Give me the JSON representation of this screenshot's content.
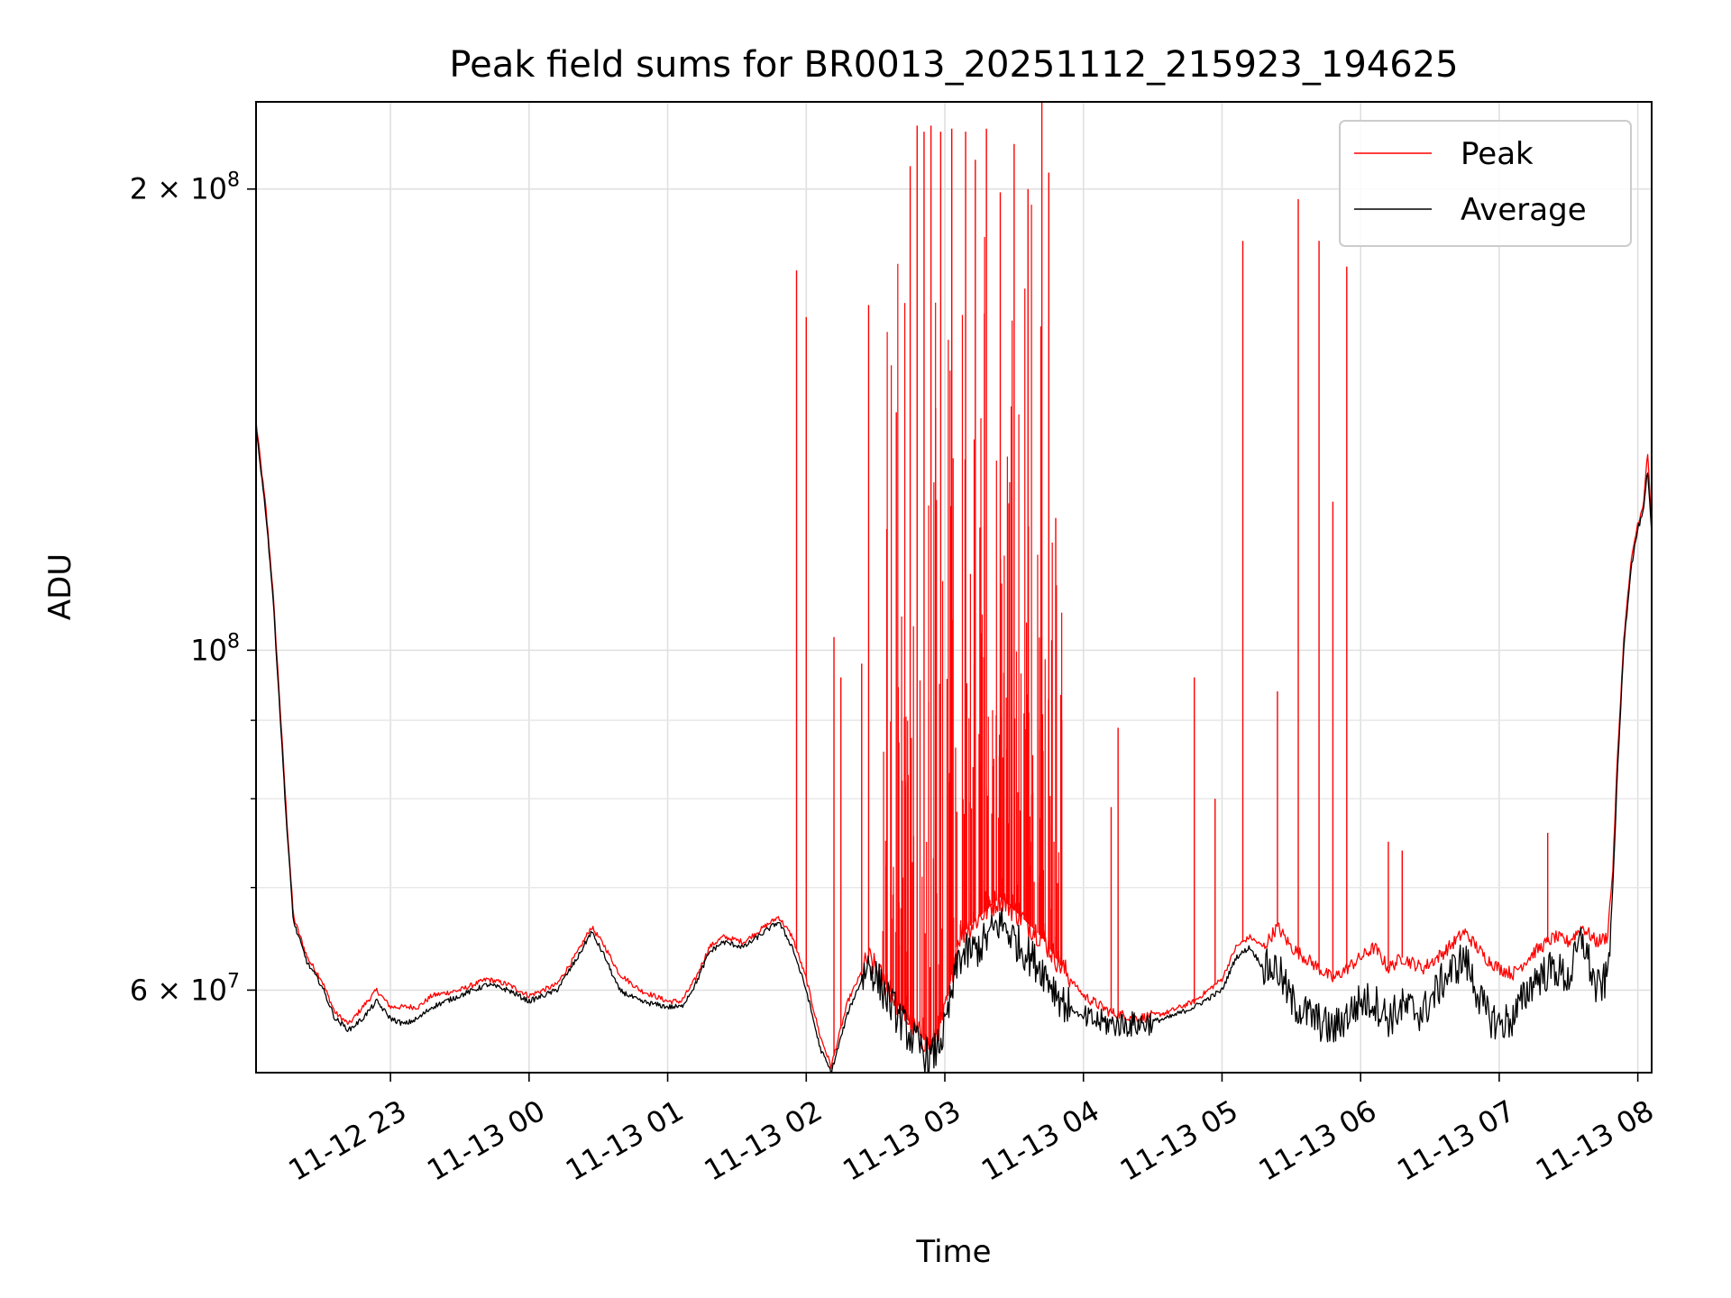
{
  "chart_data": {
    "type": "line",
    "title": "Peak field sums for BR0013_20251112_215923_194625",
    "xlabel": "Time",
    "ylabel": "ADU",
    "yscale": "log",
    "grid": true,
    "legend_position": "top-right",
    "x_range_hours": [
      22.03,
      32.1
    ],
    "ylim": [
      53000000,
      228000000
    ],
    "x_ticks": [
      {
        "hour": 23,
        "label": "11-12 23"
      },
      {
        "hour": 24,
        "label": "11-13 00"
      },
      {
        "hour": 25,
        "label": "11-13 01"
      },
      {
        "hour": 26,
        "label": "11-13 02"
      },
      {
        "hour": 27,
        "label": "11-13 03"
      },
      {
        "hour": 28,
        "label": "11-13 04"
      },
      {
        "hour": 29,
        "label": "11-13 05"
      },
      {
        "hour": 30,
        "label": "11-13 06"
      },
      {
        "hour": 31,
        "label": "11-13 07"
      },
      {
        "hour": 32,
        "label": "11-13 08"
      }
    ],
    "y_ticks": [
      {
        "value": 60000000,
        "base": "6 × 10",
        "exp": "7"
      },
      {
        "value": 100000000,
        "base": "10",
        "exp": "8"
      },
      {
        "value": 200000000,
        "base": "2 × 10",
        "exp": "8"
      }
    ],
    "y_minor_ticks": [
      70000000,
      80000000,
      90000000
    ],
    "series": [
      {
        "name": "Peak",
        "color": "#ff0000",
        "baseline": [
          [
            22.03,
            141000000
          ],
          [
            22.1,
            124000000
          ],
          [
            22.15,
            110000000
          ],
          [
            22.2,
            93000000
          ],
          [
            22.25,
            78000000
          ],
          [
            22.3,
            67000000
          ],
          [
            22.4,
            63000000
          ],
          [
            22.5,
            61000000
          ],
          [
            22.6,
            58000000
          ],
          [
            22.7,
            57000000
          ],
          [
            22.8,
            58500000
          ],
          [
            22.9,
            60000000
          ],
          [
            23.0,
            58500000
          ],
          [
            23.1,
            58500000
          ],
          [
            23.2,
            58500000
          ],
          [
            23.3,
            59500000
          ],
          [
            23.5,
            60000000
          ],
          [
            23.7,
            61000000
          ],
          [
            23.85,
            60500000
          ],
          [
            24.0,
            59500000
          ],
          [
            24.2,
            60500000
          ],
          [
            24.35,
            63500000
          ],
          [
            24.45,
            66000000
          ],
          [
            24.55,
            64000000
          ],
          [
            24.65,
            61500000
          ],
          [
            24.8,
            60000000
          ],
          [
            25.0,
            59000000
          ],
          [
            25.1,
            59000000
          ],
          [
            25.2,
            61000000
          ],
          [
            25.3,
            64000000
          ],
          [
            25.4,
            65000000
          ],
          [
            25.55,
            64500000
          ],
          [
            25.7,
            66000000
          ],
          [
            25.8,
            67000000
          ],
          [
            25.9,
            65000000
          ],
          [
            26.0,
            61000000
          ],
          [
            26.1,
            56000000
          ],
          [
            26.18,
            53500000
          ],
          [
            26.3,
            59000000
          ],
          [
            26.45,
            63000000
          ],
          [
            26.6,
            60000000
          ],
          [
            26.75,
            57000000
          ],
          [
            26.9,
            55000000
          ],
          [
            27.0,
            58000000
          ],
          [
            27.1,
            65000000
          ],
          [
            27.25,
            67000000
          ],
          [
            27.4,
            69000000
          ],
          [
            27.55,
            67000000
          ],
          [
            27.7,
            65000000
          ],
          [
            27.85,
            62000000
          ],
          [
            28.0,
            59500000
          ],
          [
            28.2,
            58000000
          ],
          [
            28.4,
            57500000
          ],
          [
            28.6,
            58000000
          ],
          [
            28.8,
            59000000
          ],
          [
            29.0,
            61000000
          ],
          [
            29.1,
            64000000
          ],
          [
            29.2,
            65000000
          ],
          [
            29.3,
            64000000
          ],
          [
            29.4,
            66000000
          ],
          [
            29.5,
            64000000
          ],
          [
            29.6,
            63000000
          ],
          [
            29.8,
            61000000
          ],
          [
            30.0,
            63000000
          ],
          [
            30.1,
            64000000
          ],
          [
            30.2,
            62000000
          ],
          [
            30.3,
            63000000
          ],
          [
            30.45,
            62000000
          ],
          [
            30.6,
            63500000
          ],
          [
            30.75,
            65500000
          ],
          [
            30.9,
            63000000
          ],
          [
            31.0,
            62000000
          ],
          [
            31.1,
            61500000
          ],
          [
            31.25,
            63500000
          ],
          [
            31.4,
            65000000
          ],
          [
            31.5,
            64500000
          ],
          [
            31.6,
            66000000
          ],
          [
            31.7,
            64500000
          ],
          [
            31.78,
            65000000
          ],
          [
            31.82,
            72000000
          ],
          [
            31.85,
            84000000
          ],
          [
            31.9,
            102000000
          ],
          [
            31.95,
            114000000
          ],
          [
            32.0,
            121000000
          ],
          [
            32.04,
            124000000
          ],
          [
            32.07,
            135000000
          ],
          [
            32.1,
            120000000
          ]
        ],
        "spikes": [
          [
            25.93,
            177000000
          ],
          [
            26.0,
            165000000
          ],
          [
            26.2,
            102000000
          ],
          [
            26.25,
            96000000
          ],
          [
            26.4,
            98000000
          ],
          [
            26.45,
            168000000
          ],
          [
            26.65,
            143000000
          ],
          [
            26.75,
            207000000
          ],
          [
            26.8,
            220000000
          ],
          [
            26.85,
            218000000
          ],
          [
            26.9,
            220000000
          ],
          [
            26.97,
            218000000
          ],
          [
            27.05,
            219000000
          ],
          [
            27.15,
            218000000
          ],
          [
            27.22,
            209000000
          ],
          [
            27.3,
            219000000
          ],
          [
            27.4,
            199000000
          ],
          [
            27.5,
            214000000
          ],
          [
            27.6,
            200000000
          ],
          [
            27.7,
            228000000
          ],
          [
            27.75,
            205000000
          ],
          [
            27.8,
            122000000
          ],
          [
            28.2,
            79000000
          ],
          [
            28.25,
            89000000
          ],
          [
            28.8,
            96000000
          ],
          [
            28.95,
            80000000
          ],
          [
            29.15,
            185000000
          ],
          [
            29.4,
            94000000
          ],
          [
            29.55,
            197000000
          ],
          [
            29.7,
            185000000
          ],
          [
            29.8,
            125000000
          ],
          [
            29.9,
            178000000
          ],
          [
            30.2,
            75000000
          ],
          [
            30.3,
            74000000
          ],
          [
            31.35,
            76000000
          ]
        ]
      },
      {
        "name": "Average",
        "color": "#000000",
        "baseline": [
          [
            22.03,
            140000000
          ],
          [
            22.1,
            123000000
          ],
          [
            22.15,
            109000000
          ],
          [
            22.2,
            92000000
          ],
          [
            22.25,
            77000000
          ],
          [
            22.3,
            66500000
          ],
          [
            22.4,
            62500000
          ],
          [
            22.5,
            60500000
          ],
          [
            22.6,
            57500000
          ],
          [
            22.7,
            56500000
          ],
          [
            22.8,
            57500000
          ],
          [
            22.9,
            59000000
          ],
          [
            23.0,
            57500000
          ],
          [
            23.1,
            57000000
          ],
          [
            23.2,
            57500000
          ],
          [
            23.3,
            58500000
          ],
          [
            23.5,
            59500000
          ],
          [
            23.7,
            60500000
          ],
          [
            23.85,
            60000000
          ],
          [
            24.0,
            59000000
          ],
          [
            24.2,
            60000000
          ],
          [
            24.35,
            63000000
          ],
          [
            24.45,
            65500000
          ],
          [
            24.55,
            63000000
          ],
          [
            24.65,
            60000000
          ],
          [
            24.8,
            59000000
          ],
          [
            25.0,
            58500000
          ],
          [
            25.1,
            58500000
          ],
          [
            25.2,
            60500000
          ],
          [
            25.3,
            63500000
          ],
          [
            25.4,
            64500000
          ],
          [
            25.55,
            64000000
          ],
          [
            25.7,
            65500000
          ],
          [
            25.8,
            66500000
          ],
          [
            25.9,
            64000000
          ],
          [
            26.0,
            60000000
          ],
          [
            26.1,
            55000000
          ],
          [
            26.18,
            53000000
          ],
          [
            26.3,
            58000000
          ],
          [
            26.45,
            62500000
          ],
          [
            26.6,
            59000000
          ],
          [
            26.75,
            56000000
          ],
          [
            26.9,
            54000000
          ],
          [
            27.0,
            56500000
          ],
          [
            27.1,
            63000000
          ],
          [
            27.25,
            64000000
          ],
          [
            27.4,
            66500000
          ],
          [
            27.55,
            64000000
          ],
          [
            27.7,
            62000000
          ],
          [
            27.85,
            59000000
          ],
          [
            28.0,
            57500000
          ],
          [
            28.2,
            57000000
          ],
          [
            28.4,
            57000000
          ],
          [
            28.6,
            57500000
          ],
          [
            28.8,
            58500000
          ],
          [
            29.0,
            60000000
          ],
          [
            29.1,
            63000000
          ],
          [
            29.2,
            64000000
          ],
          [
            29.3,
            62000000
          ],
          [
            29.4,
            62000000
          ],
          [
            29.5,
            59000000
          ],
          [
            29.6,
            58000000
          ],
          [
            29.8,
            56500000
          ],
          [
            30.0,
            59000000
          ],
          [
            30.1,
            59000000
          ],
          [
            30.2,
            57500000
          ],
          [
            30.3,
            58500000
          ],
          [
            30.45,
            58000000
          ],
          [
            30.6,
            61000000
          ],
          [
            30.75,
            63000000
          ],
          [
            30.9,
            58000000
          ],
          [
            31.0,
            57000000
          ],
          [
            31.1,
            57500000
          ],
          [
            31.25,
            61000000
          ],
          [
            31.4,
            62000000
          ],
          [
            31.5,
            61000000
          ],
          [
            31.6,
            65000000
          ],
          [
            31.7,
            60000000
          ],
          [
            31.78,
            61000000
          ],
          [
            31.82,
            70000000
          ],
          [
            31.85,
            82000000
          ],
          [
            31.9,
            101000000
          ],
          [
            31.95,
            113000000
          ],
          [
            32.0,
            120000000
          ],
          [
            32.04,
            123000000
          ],
          [
            32.07,
            131000000
          ],
          [
            32.1,
            119000000
          ]
        ]
      }
    ]
  }
}
